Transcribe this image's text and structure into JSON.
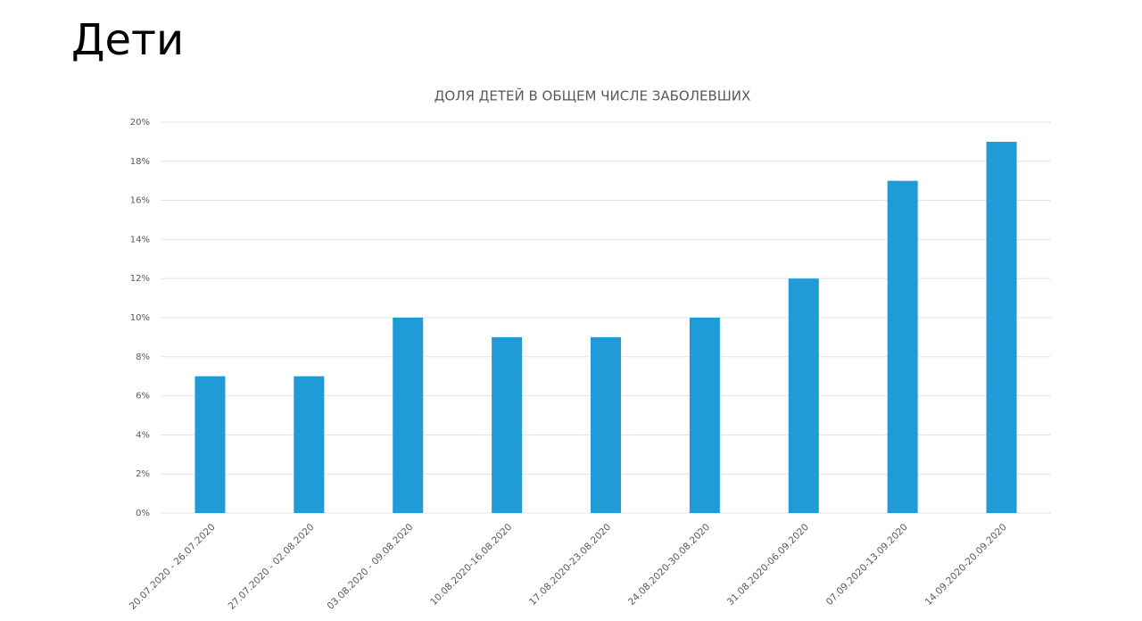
{
  "heading": "Дети",
  "chart_data": {
    "type": "bar",
    "title": "ДОЛЯ ДЕТЕЙ В ОБЩЕМ ЧИСЛЕ ЗАБОЛЕВШИХ",
    "categories": [
      "20.07.2020 - 26.07.2020",
      "27.07.2020 - 02.08.2020",
      "03.08.2020 - 09.08.2020",
      "10.08.2020-16.08.2020",
      "17.08.2020-23.08.2020",
      "24.08.2020-30.08.2020",
      "31.08.2020-06.09.2020",
      "07.09.2020-13.09.2020",
      "14.09.2020-20.09.2020"
    ],
    "values": [
      7,
      7,
      10,
      9,
      9,
      10,
      12,
      17,
      19
    ],
    "color": "#1f9bd7",
    "ylim": [
      0,
      20
    ],
    "yticks": [
      {
        "value": 0,
        "label": "0%"
      },
      {
        "value": 2,
        "label": "2%"
      },
      {
        "value": 4,
        "label": "4%"
      },
      {
        "value": 6,
        "label": "6%"
      },
      {
        "value": 8,
        "label": "8%"
      },
      {
        "value": 10,
        "label": "10%"
      },
      {
        "value": 12,
        "label": "12%"
      },
      {
        "value": 14,
        "label": "14%"
      },
      {
        "value": 16,
        "label": "16%"
      },
      {
        "value": 18,
        "label": "18%"
      },
      {
        "value": 20,
        "label": "20%"
      }
    ],
    "grid": true
  }
}
